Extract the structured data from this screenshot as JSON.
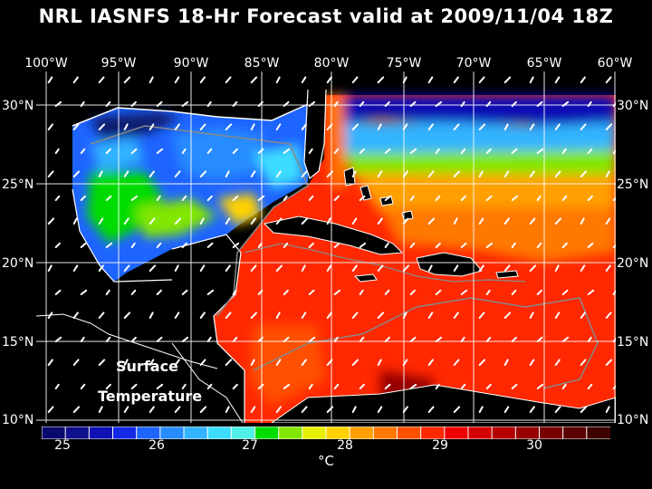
{
  "title": "NRL IASNFS  18-Hr Forecast valid at 2009/11/04 18Z",
  "longitude_labels": [
    "100°W",
    "95°W",
    "90°W",
    "85°W",
    "80°W",
    "75°W",
    "70°W",
    "65°W",
    "60°W"
  ],
  "latitude_labels": [
    "30°N",
    "25°N",
    "20°N",
    "15°N",
    "10°N"
  ],
  "overlay_labels": {
    "line1": "Surface",
    "line2": "Temperature"
  },
  "colorbar": {
    "ticks": [
      "25",
      "26",
      "27",
      "28",
      "29",
      "30"
    ],
    "unit": "°C",
    "range": [
      24.6,
      30.8
    ],
    "colors": [
      "#0a0a6e",
      "#10108c",
      "#1010b4",
      "#1428e6",
      "#1e64ff",
      "#288cff",
      "#32b4ff",
      "#3cdcff",
      "#50f0e6",
      "#00dc00",
      "#82e600",
      "#e6f000",
      "#ffd200",
      "#ffa000",
      "#ff7800",
      "#ff5000",
      "#ff2800",
      "#f00000",
      "#d20000",
      "#b40000",
      "#960000",
      "#780000",
      "#5a0000",
      "#3c0000"
    ]
  }
}
